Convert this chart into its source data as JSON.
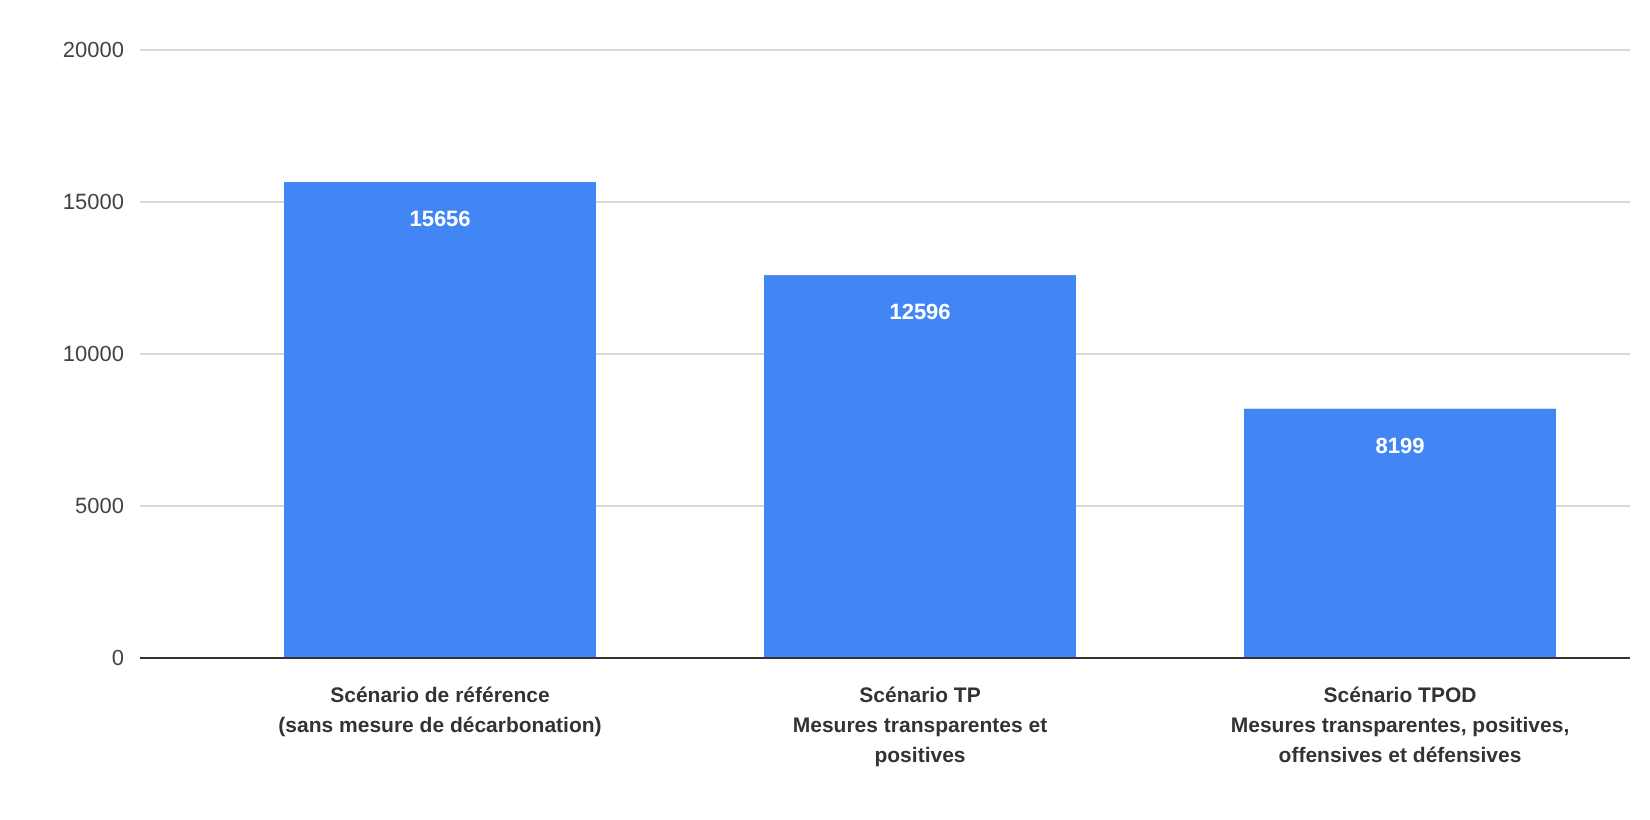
{
  "chart_data": {
    "type": "bar",
    "categories": [
      "Scénario de référence\n(sans mesure de décarbonation)",
      "Scénario TP\nMesures transparentes et\npositives",
      "Scénario TPOD\nMesures transparentes, positives,\noffensives et défensives"
    ],
    "values": [
      15656,
      12596,
      8199
    ],
    "color": "#4285f4",
    "ylim": [
      0,
      20000
    ],
    "yticks": [
      0,
      5000,
      10000,
      15000,
      20000
    ],
    "grid": "y",
    "data_labels": true
  }
}
